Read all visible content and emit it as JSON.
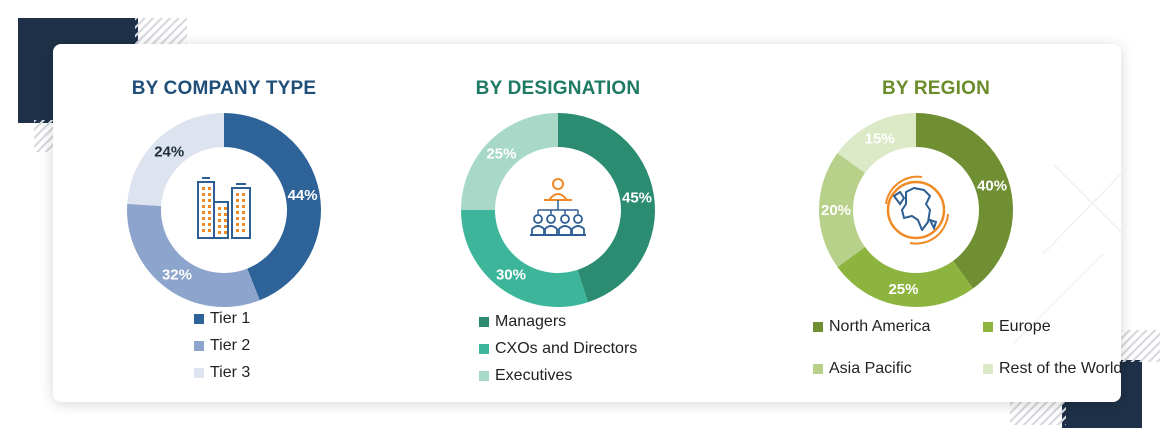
{
  "chart_data": [
    {
      "type": "pie",
      "title": "BY COMPANY TYPE",
      "title_color": "#1f4e79",
      "categories": [
        "Tier 1",
        "Tier 2",
        "Tier 3"
      ],
      "values": [
        44,
        32,
        24
      ],
      "labels": [
        "44%",
        "32%",
        "24%"
      ],
      "colors": [
        "#2e6399",
        "#8da4cc",
        "#dde3ef"
      ],
      "label_colors": [
        "#ffffff",
        "#ffffff",
        "#1f2d3d"
      ],
      "icon": "buildings-icon",
      "legend_position": "bottom"
    },
    {
      "type": "pie",
      "title": "BY DESIGNATION",
      "title_color": "#1e7a62",
      "categories": [
        "Managers",
        "CXOs and Directors",
        "Executives"
      ],
      "values": [
        45,
        30,
        25
      ],
      "labels": [
        "45%",
        "30%",
        "25%"
      ],
      "colors": [
        "#2b8c71",
        "#3cb59a",
        "#a8d8c8"
      ],
      "label_colors": [
        "#ffffff",
        "#ffffff",
        "#ffffff"
      ],
      "icon": "team-hierarchy-icon",
      "legend_position": "bottom"
    },
    {
      "type": "pie",
      "title": "BY REGION",
      "title_color": "#6b8c2a",
      "categories": [
        "North America",
        "Europe",
        "Asia Pacific",
        "Rest of the World"
      ],
      "values": [
        40,
        25,
        20,
        15
      ],
      "labels": [
        "40%",
        "25%",
        "20%",
        "15%"
      ],
      "colors": [
        "#6f8f32",
        "#8db43f",
        "#b7d08a",
        "#dce9c6"
      ],
      "label_colors": [
        "#ffffff",
        "#ffffff",
        "#ffffff",
        "#ffffff"
      ],
      "icon": "globe-icon",
      "legend_position": "bottom"
    }
  ]
}
